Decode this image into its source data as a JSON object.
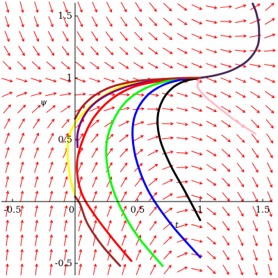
{
  "chart_data": {
    "type": "line",
    "subtype": "phase-portrait-direction-field",
    "title": "",
    "xlabel": "t",
    "ylabel": "ψ",
    "xlim": [
      -0.55,
      1.58
    ],
    "ylim": [
      -0.58,
      1.6
    ],
    "x_ticks": [
      {
        "value": -0.5,
        "label": "-0.5"
      },
      {
        "value": 0,
        "label": "0"
      },
      {
        "value": 0.5,
        "label": "0.5"
      },
      {
        "value": 1,
        "label": "1"
      },
      {
        "value": 1.5,
        "label": "1.5"
      }
    ],
    "y_ticks": [
      {
        "value": -0.5,
        "label": "-0.5"
      },
      {
        "value": 0.5,
        "label": "0.5"
      },
      {
        "value": 1,
        "label": "1"
      },
      {
        "value": 1.5,
        "label": "1.5"
      }
    ],
    "grid": false,
    "legend": "none",
    "field_color": "#ff0000",
    "series": [
      {
        "color": "#ffff00",
        "points": [
          [
            0,
            0.05
          ],
          [
            -0.04,
            0.2
          ],
          [
            -0.06,
            0.4
          ],
          [
            -0.04,
            0.55
          ],
          [
            0.02,
            0.66
          ],
          [
            0.12,
            0.77
          ],
          [
            0.25,
            0.87
          ],
          [
            0.4,
            0.94
          ],
          [
            0.6,
            0.98
          ],
          [
            0.8,
            0.995
          ],
          [
            1.0,
            1.0
          ]
        ]
      },
      {
        "color": "#800080",
        "points": [
          [
            0.02,
            0.44
          ],
          [
            0.02,
            0.55
          ],
          [
            0.06,
            0.67
          ],
          [
            0.14,
            0.78
          ],
          [
            0.27,
            0.87
          ],
          [
            0.45,
            0.94
          ],
          [
            0.65,
            0.98
          ],
          [
            0.85,
            0.995
          ],
          [
            1.0,
            1.0
          ]
        ]
      },
      {
        "color": "#ff0000",
        "points": [
          [
            0.45,
            -0.48
          ],
          [
            0.3,
            -0.3
          ],
          [
            0.15,
            -0.1
          ],
          [
            0.06,
            0.05
          ],
          [
            0.02,
            0.2
          ],
          [
            0.02,
            0.35
          ],
          [
            0.07,
            0.52
          ],
          [
            0.15,
            0.68
          ],
          [
            0.28,
            0.82
          ],
          [
            0.45,
            0.92
          ],
          [
            0.65,
            0.97
          ],
          [
            0.85,
            0.995
          ],
          [
            1.0,
            1.0
          ]
        ]
      },
      {
        "color": "#a52a2a",
        "points": [
          [
            0.36,
            -0.52
          ],
          [
            0.22,
            -0.36
          ],
          [
            0.1,
            -0.18
          ],
          [
            0.04,
            -0.02
          ],
          [
            0.0,
            0.04
          ]
        ]
      },
      {
        "color": "#00ff00",
        "points": [
          [
            0.7,
            -0.52
          ],
          [
            0.5,
            -0.28
          ],
          [
            0.35,
            -0.02
          ],
          [
            0.27,
            0.22
          ],
          [
            0.25,
            0.45
          ],
          [
            0.3,
            0.64
          ],
          [
            0.4,
            0.8
          ],
          [
            0.55,
            0.91
          ],
          [
            0.72,
            0.97
          ],
          [
            0.88,
            0.995
          ],
          [
            1.0,
            1.0
          ]
        ]
      },
      {
        "color": "#0000ff",
        "points": [
          [
            1.0,
            -0.45
          ],
          [
            0.78,
            -0.2
          ],
          [
            0.6,
            0.06
          ],
          [
            0.5,
            0.3
          ],
          [
            0.46,
            0.52
          ],
          [
            0.48,
            0.7
          ],
          [
            0.57,
            0.85
          ],
          [
            0.7,
            0.94
          ],
          [
            0.85,
            0.985
          ],
          [
            1.0,
            1.0
          ]
        ]
      },
      {
        "color": "#000000",
        "points": [
          [
            1.0,
            -0.15
          ],
          [
            0.88,
            0.08
          ],
          [
            0.76,
            0.3
          ],
          [
            0.68,
            0.5
          ],
          [
            0.66,
            0.68
          ],
          [
            0.7,
            0.82
          ],
          [
            0.78,
            0.92
          ],
          [
            0.88,
            0.975
          ],
          [
            1.0,
            1.0
          ]
        ]
      },
      {
        "color": "#ffc0cb",
        "points": [
          [
            1.0,
            1.0
          ],
          [
            0.98,
            0.93
          ],
          [
            1.04,
            0.85
          ],
          [
            1.16,
            0.75
          ],
          [
            1.3,
            0.64
          ],
          [
            1.44,
            0.55
          ]
        ]
      },
      {
        "color": "#4b2a5a",
        "points": [
          [
            1.0,
            1.0
          ],
          [
            1.12,
            1.02
          ],
          [
            1.25,
            1.06
          ],
          [
            1.38,
            1.14
          ],
          [
            1.46,
            1.26
          ],
          [
            1.47,
            1.4
          ],
          [
            1.45,
            1.52
          ],
          [
            1.42,
            1.6
          ]
        ]
      },
      {
        "color": "#b22222",
        "points": [
          [
            0.0,
            0.67
          ],
          [
            0.06,
            0.77
          ],
          [
            0.16,
            0.86
          ],
          [
            0.3,
            0.93
          ],
          [
            0.5,
            0.975
          ],
          [
            0.7,
            0.99
          ],
          [
            0.85,
            0.998
          ],
          [
            1.0,
            1.0
          ]
        ]
      }
    ]
  }
}
